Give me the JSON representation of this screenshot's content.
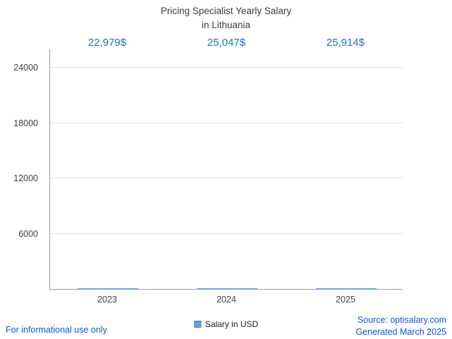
{
  "title": {
    "line1": "Pricing Specialist Yearly Salary",
    "line2": "in Lithuania"
  },
  "chart_data": {
    "type": "bar",
    "title": "Pricing Specialist Yearly Salary in Lithuania",
    "categories": [
      "2023",
      "2024",
      "2025"
    ],
    "values": [
      22979,
      25047,
      25914
    ],
    "value_labels": [
      "22,979$",
      "25,047$",
      "25,914$"
    ],
    "series_name": "Salary in USD",
    "yticks": [
      6000,
      12000,
      18000,
      24000
    ],
    "ytick_labels": [
      "6000",
      "12000",
      "18000",
      "24000"
    ],
    "ylim": [
      0,
      26000
    ],
    "xlabel": "",
    "ylabel": "",
    "grid": "horizontal",
    "legend": "Salary in USD",
    "legend_position": "bottom-center",
    "bar_color": "#4e95ef",
    "bar_gradient_center": "#ffffff",
    "value_label_color": "#1a6fd4"
  },
  "footer": {
    "left": "For informational use only",
    "source": "Source: optisalary.com",
    "generated": "Generated March 2025"
  }
}
